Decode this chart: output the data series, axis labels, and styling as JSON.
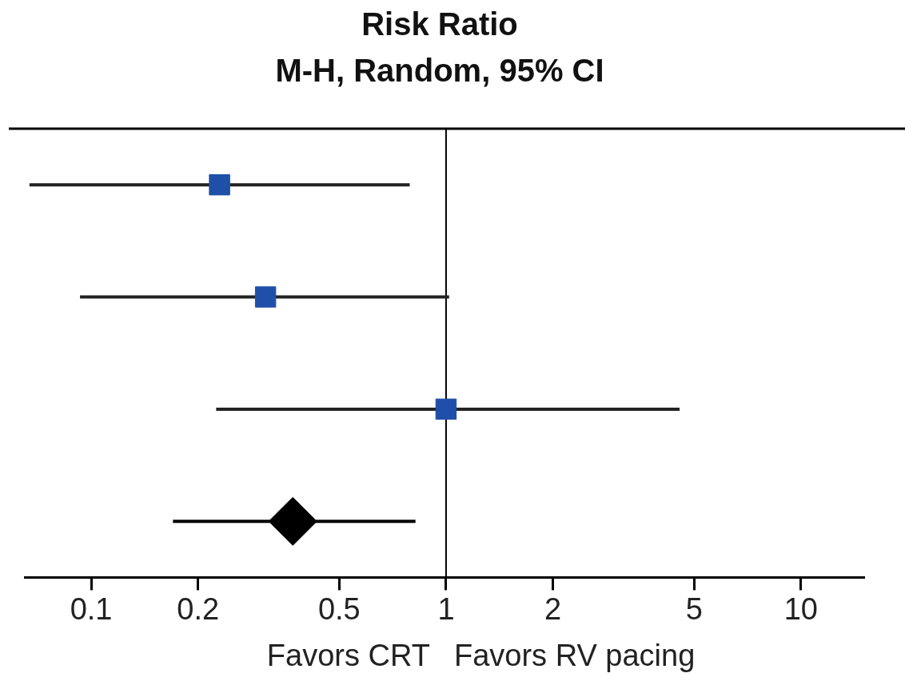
{
  "chart_data": {
    "type": "scatter",
    "orientation": "horizontal",
    "title": "Risk Ratio",
    "subtitle": "M-H, Random, 95% CI",
    "categories": [
      null,
      null,
      null,
      null
    ],
    "series": [
      {
        "color": "#1f4fa8",
        "marker": "square",
        "values": [
          0.23,
          0.31,
          1.0,
          null
        ],
        "errors": [
          [
            0.067,
            0.79
          ],
          [
            0.093,
            1.02
          ],
          [
            0.225,
            4.55
          ],
          null
        ]
      },
      {
        "color": "#000000",
        "marker": "diamond",
        "values": [
          null,
          null,
          null,
          0.37
        ],
        "errors": [
          null,
          null,
          null,
          [
            0.17,
            0.82
          ]
        ]
      }
    ],
    "log": "x",
    "xlim": [
      0.065,
      15
    ],
    "xticks": [
      0.1,
      0.2,
      0.5,
      1,
      2,
      5,
      10
    ],
    "ref_lines": [
      {
        "axis": "x",
        "value": 1,
        "color": "#000000"
      }
    ],
    "annotations": [
      "Favors CRT",
      "Favors RV pacing"
    ],
    "grid": false,
    "legend": false,
    "tick_labels": "x"
  }
}
